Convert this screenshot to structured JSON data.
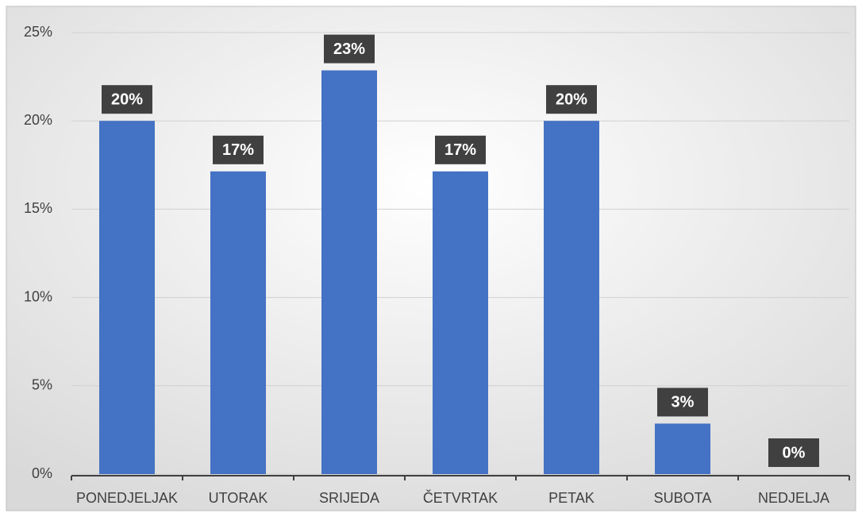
{
  "chart_data": {
    "type": "bar",
    "categories": [
      "PONEDJELJAK",
      "UTORAK",
      "SRIJEDA",
      "ČETVRTAK",
      "PETAK",
      "SUBOTA",
      "NEDJELJA"
    ],
    "values": [
      20,
      17.14,
      22.86,
      17.14,
      20,
      2.86,
      0
    ],
    "value_labels": [
      "20%",
      "17%",
      "23%",
      "17%",
      "20%",
      "3%",
      "0%"
    ],
    "color": "#4472c4",
    "ylim": [
      0,
      25
    ],
    "yticks": [
      {
        "value": 0,
        "label": "0%"
      },
      {
        "value": 5,
        "label": "5%"
      },
      {
        "value": 10,
        "label": "10%"
      },
      {
        "value": 15,
        "label": "15%"
      },
      {
        "value": 20,
        "label": "20%"
      },
      {
        "value": 25,
        "label": "25%"
      }
    ],
    "grid": true
  }
}
